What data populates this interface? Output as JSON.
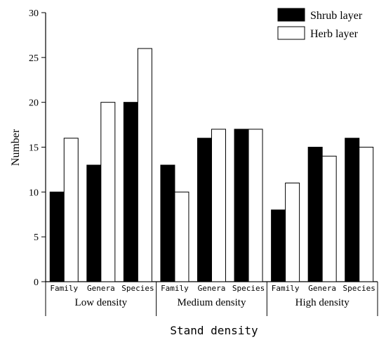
{
  "chart_data": {
    "type": "bar",
    "xlabel": "Stand density",
    "ylabel": "Number",
    "ylim": [
      0,
      30
    ],
    "yticks": [
      "0",
      "5",
      "10",
      "15",
      "20",
      "25",
      "30"
    ],
    "groups": [
      {
        "label": "Low density",
        "categories": [
          "Family",
          "Genera",
          "Species"
        ],
        "series": [
          {
            "name": "Shrub layer",
            "values": [
              10,
              13,
              20
            ]
          },
          {
            "name": "Herb layer",
            "values": [
              16,
              20,
              26
            ]
          }
        ]
      },
      {
        "label": "Medium density",
        "categories": [
          "Family",
          "Genera",
          "Species"
        ],
        "series": [
          {
            "name": "Shrub layer",
            "values": [
              13,
              16,
              17
            ]
          },
          {
            "name": "Herb layer",
            "values": [
              10,
              17,
              17
            ]
          }
        ]
      },
      {
        "label": "High density",
        "categories": [
          "Family",
          "Genera",
          "Species"
        ],
        "series": [
          {
            "name": "Shrub layer",
            "values": [
              8,
              15,
              16
            ]
          },
          {
            "name": "Herb layer",
            "values": [
              11,
              14,
              15
            ]
          }
        ]
      }
    ],
    "legend": {
      "position": "top-right",
      "items": [
        {
          "name": "Shrub layer",
          "color": "#000000"
        },
        {
          "name": "Herb layer",
          "color": "#ffffff"
        }
      ]
    },
    "grid": false
  }
}
